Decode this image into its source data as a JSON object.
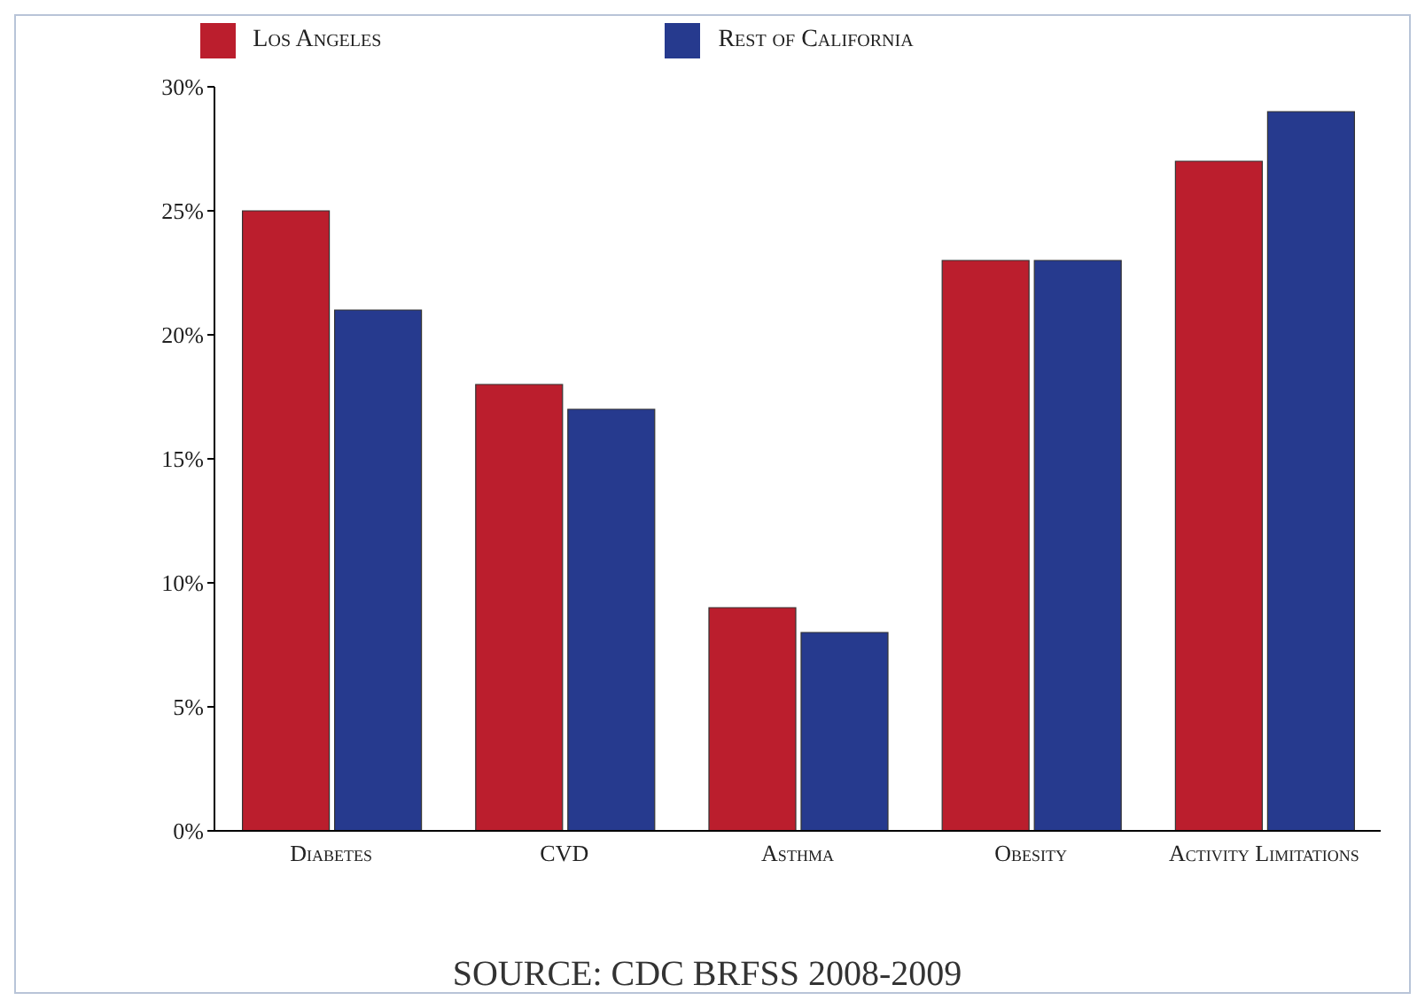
{
  "chart_data": {
    "type": "bar",
    "categories": [
      "Diabetes",
      "CVD",
      "Asthma",
      "Obesity",
      "Activity Limitations"
    ],
    "series": [
      {
        "name": "Los Angeles",
        "color": "#bb1e2d",
        "values": [
          25,
          18,
          9,
          23,
          27
        ]
      },
      {
        "name": "Rest of California",
        "color": "#263a8e",
        "values": [
          21,
          17,
          8,
          23,
          29
        ]
      }
    ],
    "ylim": [
      0,
      30
    ],
    "yticks": [
      {
        "value": 0,
        "label": "0%"
      },
      {
        "value": 5,
        "label": "5%"
      },
      {
        "value": 10,
        "label": "10%"
      },
      {
        "value": 15,
        "label": "15%"
      },
      {
        "value": 20,
        "label": "20%"
      },
      {
        "value": 25,
        "label": "25%"
      },
      {
        "value": 30,
        "label": "30%"
      }
    ],
    "grid": false,
    "legend": "top",
    "annotations": [
      "SOURCE: CDC BRFSS 2008-2009"
    ]
  }
}
